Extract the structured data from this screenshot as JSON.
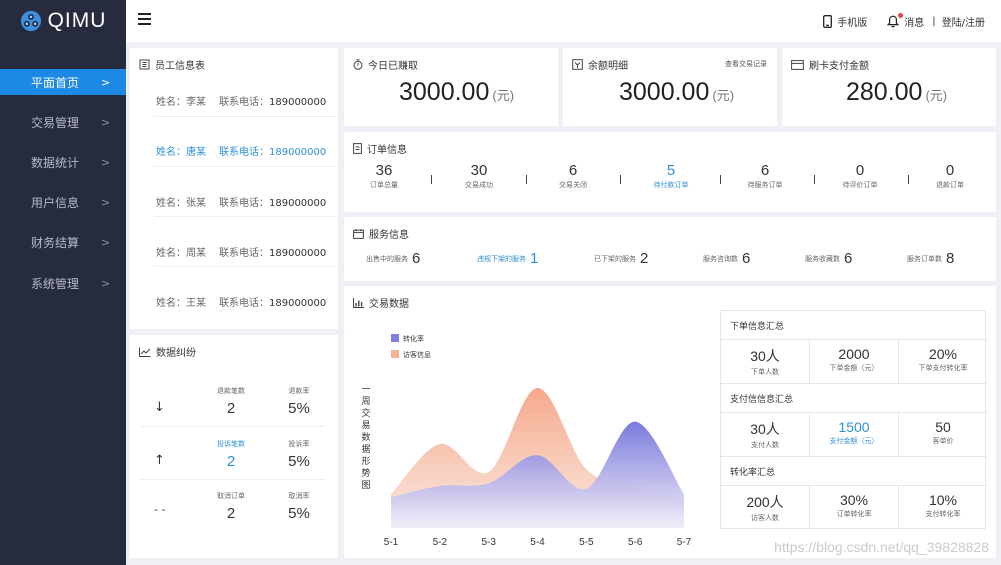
{
  "brand": {
    "name": "QIMU"
  },
  "header": {
    "mobile_label": "手机版",
    "message_label": "消息",
    "separator": "|",
    "login_label": "登陆/注册"
  },
  "sidebar": {
    "items": [
      {
        "label": "平面首页",
        "chevron": ">",
        "active": true
      },
      {
        "label": "交易管理",
        "chevron": ">"
      },
      {
        "label": "数据统计",
        "chevron": ">"
      },
      {
        "label": "用户信息",
        "chevron": ">"
      },
      {
        "label": "财务结算",
        "chevron": ">"
      },
      {
        "label": "系统管理",
        "chevron": ">"
      }
    ]
  },
  "employees": {
    "title": "员工信息表",
    "rows": [
      {
        "name": "姓名：李某",
        "phone_label": "联系电话：",
        "phone": "189000000"
      },
      {
        "name": "姓名：唐某",
        "phone_label": "联系电话：",
        "phone": "189000000",
        "highlight": true
      },
      {
        "name": "姓名：张某",
        "phone_label": "联系电话：",
        "phone": "189000000"
      },
      {
        "name": "姓名：周某",
        "phone_label": "联系电话：",
        "phone": "189000000"
      },
      {
        "name": "姓名：王某",
        "phone_label": "联系电话：",
        "phone": "189000000"
      }
    ]
  },
  "cards": {
    "today": {
      "title": "今日已赚取",
      "value": "3000.00",
      "unit": "(元)"
    },
    "balance": {
      "title": "余额明细",
      "value": "3000.00",
      "unit": "(元)",
      "link": "查看交易记录"
    },
    "card_pay": {
      "title": "刷卡支付金额",
      "value": "280.00",
      "unit": "(元)"
    }
  },
  "orders": {
    "title": "订单信息",
    "items": [
      {
        "value": "36",
        "label": "订单总量"
      },
      {
        "value": "30",
        "label": "交易成功"
      },
      {
        "value": "6",
        "label": "交易关闭"
      },
      {
        "value": "5",
        "label": "待付款订单",
        "highlight": true
      },
      {
        "value": "6",
        "label": "待服务订单"
      },
      {
        "value": "0",
        "label": "待评价订单"
      },
      {
        "value": "0",
        "label": "退款订单"
      }
    ]
  },
  "services": {
    "title": "服务信息",
    "items": [
      {
        "label": "出售中的服务",
        "value": "6"
      },
      {
        "label": "违规下架的服务",
        "value": "1",
        "highlight": true
      },
      {
        "label": "已下架的服务",
        "value": "2"
      },
      {
        "label": "服务咨询数",
        "value": "6"
      },
      {
        "label": "服务收藏数",
        "value": "6"
      },
      {
        "label": "服务订单数",
        "value": "8"
      }
    ]
  },
  "disputes": {
    "title": "数据纠纷",
    "rows": [
      {
        "arrow": "↓",
        "count_label": "退款笔数",
        "count": "2",
        "rate_label": "退款率",
        "rate": "5%"
      },
      {
        "arrow": "↑",
        "count_label": "投诉笔数",
        "count": "2",
        "rate_label": "投诉率",
        "rate": "5%",
        "highlight": true
      },
      {
        "arrow": "- -",
        "count_label": "取消订单",
        "count": "2",
        "rate_label": "取消率",
        "rate": "5%"
      }
    ]
  },
  "trade": {
    "title": "交易数据",
    "chart_title": "一周交易数据形势图",
    "chart_data": {
      "type": "area",
      "title": "一周交易数据形势图",
      "categories": [
        "5-1",
        "5-2",
        "5-3",
        "5-4",
        "5-5",
        "5-6",
        "5-7"
      ],
      "series": [
        {
          "name": "转化率",
          "color": "#7e7fe0",
          "values": [
            22,
            30,
            32,
            52,
            28,
            76,
            24
          ]
        },
        {
          "name": "访客信息",
          "color": "#f7b396",
          "values": [
            24,
            60,
            40,
            100,
            42,
            30,
            20
          ]
        }
      ],
      "ylim": [
        0,
        110
      ],
      "grid": false,
      "legend": "top-left"
    }
  },
  "summary": {
    "sections": [
      {
        "title": "下单信息汇总",
        "cells": [
          {
            "value": "30人",
            "label": "下单人数"
          },
          {
            "value": "2000",
            "label": "下单金额（元）"
          },
          {
            "value": "20%",
            "label": "下单支付转化率"
          }
        ]
      },
      {
        "title": "支付信信息汇总",
        "cells": [
          {
            "value": "30人",
            "label": "支付人数"
          },
          {
            "value": "1500",
            "label": "支付金额（元）",
            "highlight": true
          },
          {
            "value": "50",
            "label": "客单价"
          }
        ]
      },
      {
        "title": "转化率汇总",
        "cells": [
          {
            "value": "200人",
            "label": "访客人数"
          },
          {
            "value": "30%",
            "label": "订单转化率"
          },
          {
            "value": "10%",
            "label": "支付转化率"
          }
        ]
      }
    ]
  },
  "watermark": "https://blog.csdn.net/qq_39828828"
}
